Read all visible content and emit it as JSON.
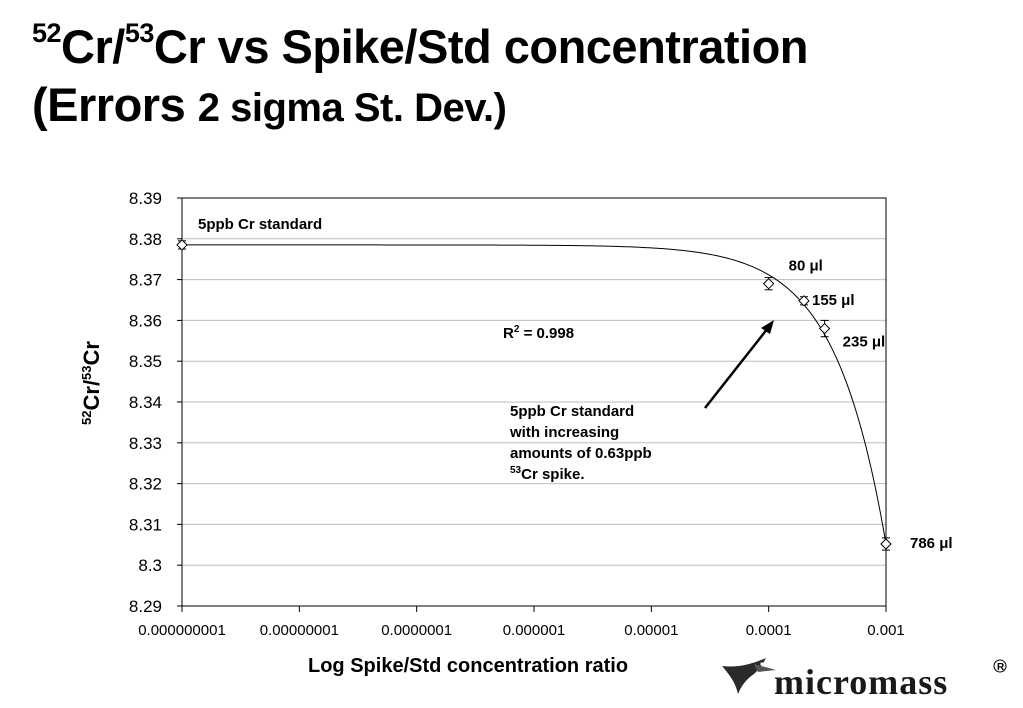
{
  "title": {
    "line1_sup_a": "52",
    "line1_a": "Cr/",
    "line1_sup_b": "53",
    "line1_b": "Cr vs Spike/Std concentration",
    "line2_a": "(Errors ",
    "line2_b": "2 sigma St. Dev.)"
  },
  "logo": {
    "text": "micromass",
    "mark": "®",
    "icon": "hummingbird-icon"
  },
  "chart_data": {
    "type": "scatter",
    "x_scale": "log",
    "xlabel": "Log Spike/Std concentration ratio",
    "ylabel": {
      "sup_a": "52",
      "a": "Cr/",
      "sup_b": "53",
      "b": "Cr"
    },
    "xlim": [
      1e-09,
      0.001
    ],
    "ylim": [
      8.29,
      8.39
    ],
    "x_tick_labels": [
      "0.000000001",
      "0.00000001",
      "0.0000001",
      "0.000001",
      "0.00001",
      "0.0001",
      "0.001"
    ],
    "y_tick_labels": [
      "8.39",
      "8.38",
      "8.37",
      "8.36",
      "8.35",
      "8.34",
      "8.33",
      "8.32",
      "8.31",
      "8.3",
      "8.29"
    ],
    "grid": "horizontal",
    "series": [
      {
        "marker": "diamond",
        "points": [
          {
            "x": 1e-09,
            "y": 8.3785,
            "err": 0.001,
            "label": "5ppb Cr standard"
          },
          {
            "x": 0.0001,
            "y": 8.369,
            "err": 0.0015,
            "label": "80 μl"
          },
          {
            "x": 0.0002,
            "y": 8.3648,
            "err": 0.001,
            "label": "155 μl"
          },
          {
            "x": 0.0003,
            "y": 8.358,
            "err": 0.002,
            "label": "235 μl"
          },
          {
            "x": 0.001,
            "y": 8.3052,
            "err": 0.0015,
            "label": "786 μl"
          }
        ]
      }
    ],
    "fit_label": {
      "prefix": "R",
      "sup": "2",
      "text": " = 0.998"
    },
    "annotation": [
      "5ppb Cr standard",
      "with increasing",
      "amounts of 0.63ppb",
      "Cr spike."
    ],
    "annotation_sup": "53"
  }
}
